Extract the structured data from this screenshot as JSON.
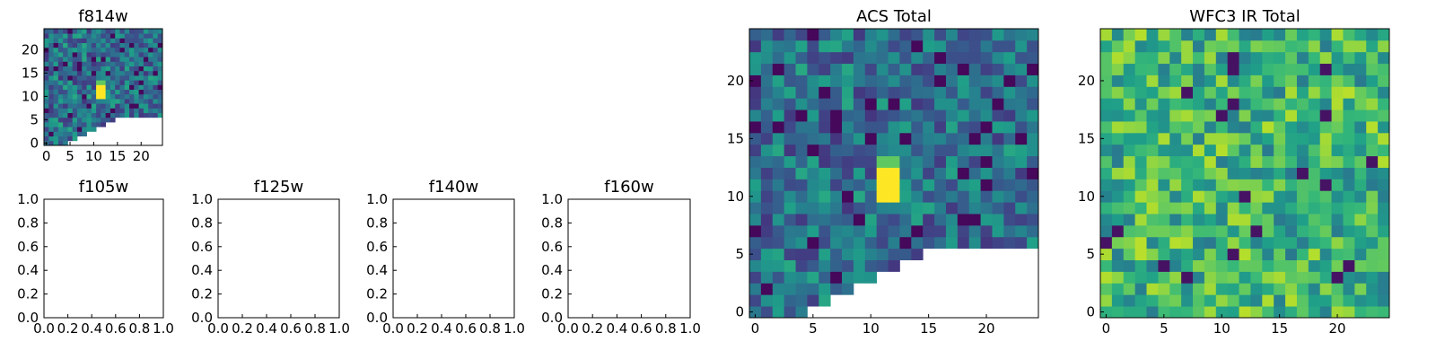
{
  "chart_data": [
    {
      "type": "heatmap",
      "title": "f814w",
      "xlabel": "",
      "ylabel": "",
      "xlim": [
        -0.5,
        24.5
      ],
      "ylim": [
        -0.5,
        24.5
      ],
      "xticks": [
        0,
        5,
        10,
        15,
        20
      ],
      "yticks": [
        0,
        5,
        10,
        15,
        20
      ],
      "grid_size": [
        25,
        25
      ],
      "colormap": "viridis",
      "masked_lower_right": true,
      "bright_source": {
        "x": [
          11,
          12
        ],
        "y": [
          10,
          13
        ]
      },
      "seed": 814
    },
    {
      "type": "heatmap",
      "title": "ACS Total",
      "xlabel": "",
      "ylabel": "",
      "xlim": [
        -0.5,
        24.5
      ],
      "ylim": [
        -0.5,
        24.5
      ],
      "xticks": [
        0,
        5,
        10,
        15,
        20
      ],
      "yticks": [
        0,
        5,
        10,
        15,
        20
      ],
      "grid_size": [
        25,
        25
      ],
      "colormap": "viridis",
      "masked_lower_right": true,
      "bright_source": {
        "x": [
          11,
          12
        ],
        "y": [
          10,
          13
        ]
      },
      "seed": 814
    },
    {
      "type": "heatmap",
      "title": "WFC3 IR Total",
      "xlabel": "",
      "ylabel": "",
      "xlim": [
        -0.5,
        24.5
      ],
      "ylim": [
        -0.5,
        24.5
      ],
      "xticks": [
        0,
        5,
        10,
        15,
        20
      ],
      "yticks": [
        0,
        5,
        10,
        15,
        20
      ],
      "grid_size": [
        25,
        25
      ],
      "colormap": "viridis",
      "masked_lower_right": false,
      "seed": 3160
    },
    {
      "type": "empty",
      "title": "f105w",
      "xlim": [
        0,
        1
      ],
      "ylim": [
        0,
        1
      ],
      "xtick_labels": [
        "0.0",
        "0.2",
        "0.4",
        "0.6",
        "0.8",
        "1.0"
      ],
      "ytick_labels": [
        "0.0",
        "0.2",
        "0.4",
        "0.6",
        "0.8",
        "1.0"
      ]
    },
    {
      "type": "empty",
      "title": "f125w",
      "xlim": [
        0,
        1
      ],
      "ylim": [
        0,
        1
      ],
      "xtick_labels": [
        "0.0",
        "0.2",
        "0.4",
        "0.6",
        "0.8",
        "1.0"
      ],
      "ytick_labels": [
        "0.0",
        "0.2",
        "0.4",
        "0.6",
        "0.8",
        "1.0"
      ]
    },
    {
      "type": "empty",
      "title": "f140w",
      "xlim": [
        0,
        1
      ],
      "ylim": [
        0,
        1
      ],
      "xtick_labels": [
        "0.0",
        "0.2",
        "0.4",
        "0.6",
        "0.8",
        "1.0"
      ],
      "ytick_labels": [
        "0.0",
        "0.2",
        "0.4",
        "0.6",
        "0.8",
        "1.0"
      ]
    },
    {
      "type": "empty",
      "title": "f160w",
      "xlim": [
        0,
        1
      ],
      "ylim": [
        0,
        1
      ],
      "xtick_labels": [
        "0.0",
        "0.2",
        "0.4",
        "0.6",
        "0.8",
        "1.0"
      ],
      "ytick_labels": [
        "0.0",
        "0.2",
        "0.4",
        "0.6",
        "0.8",
        "1.0"
      ]
    }
  ]
}
